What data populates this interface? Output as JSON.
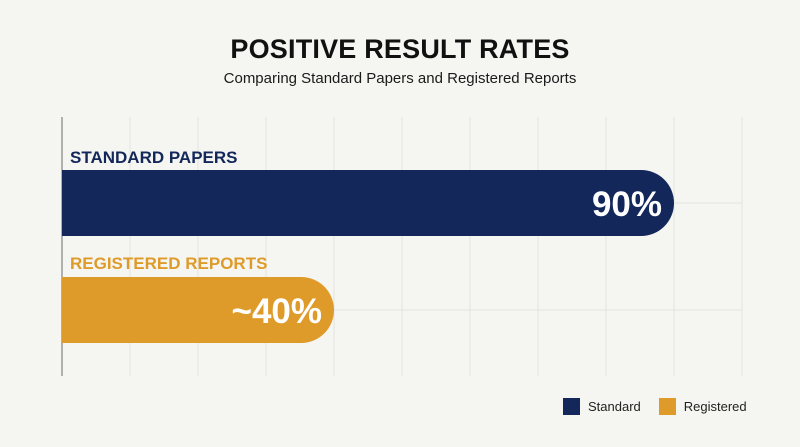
{
  "title": "POSITIVE RESULT RATES",
  "subtitle": "Comparing Standard Papers and Registered Reports",
  "chart_data": {
    "type": "bar",
    "orientation": "horizontal",
    "categories": [
      "STANDARD PAPERS",
      "REGISTERED REPORTS"
    ],
    "values": [
      90,
      40
    ],
    "value_labels": [
      "90%",
      "~40%"
    ],
    "colors": [
      "#13275a",
      "#df9b2a"
    ],
    "xlim": [
      0,
      100
    ],
    "grid": true,
    "legend_position": "bottom-right"
  },
  "legend": [
    {
      "label": "Standard",
      "color": "#13275a"
    },
    {
      "label": "Registered",
      "color": "#df9b2a"
    }
  ]
}
